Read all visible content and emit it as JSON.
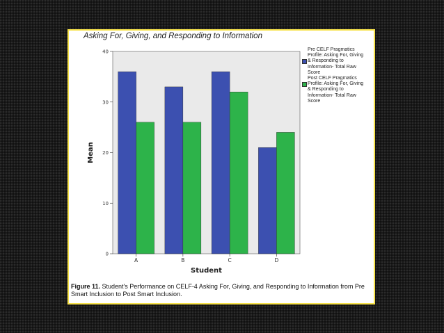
{
  "chart_data": {
    "type": "bar",
    "title": "Asking For, Giving, and Responding to Information",
    "xlabel": "Student",
    "ylabel": "Mean",
    "categories": [
      "A",
      "B",
      "C",
      "D"
    ],
    "ylim": [
      0,
      40
    ],
    "yticks": [
      0,
      10,
      20,
      30,
      40
    ],
    "grid": false,
    "legend_position": "right",
    "series": [
      {
        "name": "Pre CELF Pragmatics Profile: Asking For, Giving & Responding to Information- Total Raw Score",
        "legend_lines": [
          "Pre CELF Pragmatics",
          "Profile: Asking For, Giving",
          "& Responding to",
          "Information- Total Raw",
          "Score"
        ],
        "color": "#3c50b0",
        "values": [
          36,
          33,
          36,
          21
        ]
      },
      {
        "name": "Post CELF Pragmatics Profile: Asking For, Giving & Responding to Information- Total Raw Score",
        "legend_lines": [
          "Post  CELF Pragmatics",
          "Profile: Asking For, Giving",
          "& Responding to",
          "Information- Total Raw",
          "Score"
        ],
        "color": "#2db34a",
        "values": [
          26,
          26,
          32,
          24
        ]
      }
    ]
  },
  "caption": {
    "label": "Figure 11.",
    "text": " Student's Performance on CELF-4 Asking For, Giving, and Responding to Information from Pre Smart Inclusion to Post Smart Inclusion."
  },
  "colors": {
    "frame": "#f7e24a",
    "plot_background": "#eaeaea"
  }
}
